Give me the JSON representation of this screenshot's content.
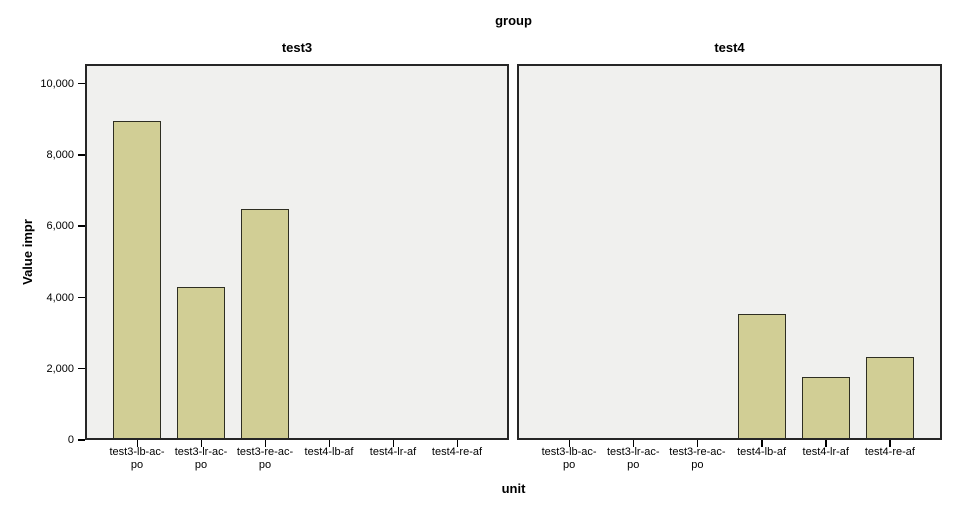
{
  "chart_data": {
    "type": "bar",
    "title": "group",
    "xlabel": "unit",
    "ylabel": "Value impr",
    "ylim": [
      0,
      10560
    ],
    "grid": false,
    "legend_position": "none",
    "yticks": [
      {
        "value": 0,
        "label": "0"
      },
      {
        "value": 2000,
        "label": "2,000"
      },
      {
        "value": 4000,
        "label": "4,000"
      },
      {
        "value": 6000,
        "label": "6,000"
      },
      {
        "value": 8000,
        "label": "8,000"
      },
      {
        "value": 10000,
        "label": "10,000"
      }
    ],
    "categories": [
      "test3-lb-ac-po",
      "test3-lr-ac-po",
      "test3-re-ac-po",
      "test4-lb-af",
      "test4-lr-af",
      "test4-re-af"
    ],
    "category_label_lines": [
      [
        "test3-lb-ac-",
        "po"
      ],
      [
        "test3-lr-ac-",
        "po"
      ],
      [
        "test3-re-ac-",
        "po"
      ],
      [
        "test4-lb-af"
      ],
      [
        "test4-lr-af"
      ],
      [
        "test4-re-af"
      ]
    ],
    "panels": [
      {
        "label": "test3",
        "values": [
          8960,
          4300,
          6500,
          null,
          null,
          null
        ]
      },
      {
        "label": "test4",
        "values": [
          null,
          null,
          null,
          3530,
          1780,
          2340
        ]
      }
    ],
    "colors": {
      "bar_fill": "#d1ce95",
      "bar_border": "#2e2e22",
      "panel_background": "#f0f0ee",
      "panel_border": "#262626",
      "tick": "#000000",
      "text": "#000000",
      "figure_background": "#ffffff"
    }
  }
}
